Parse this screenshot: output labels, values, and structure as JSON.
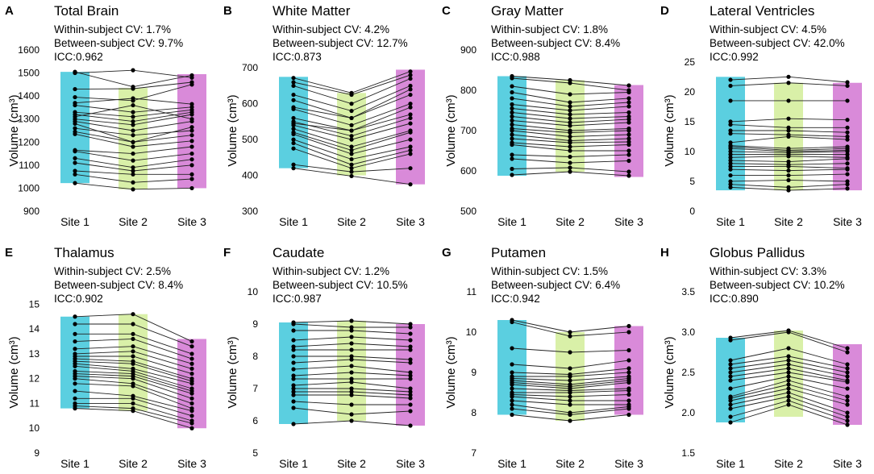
{
  "figure": {
    "site_colors": [
      "#5bcfe0",
      "#d9f0a8",
      "#d98ad9"
    ],
    "point_color": "#000000",
    "line_color": "#222222"
  },
  "chart_data": [
    {
      "letter": "A",
      "title": "Total Brain",
      "type": "line",
      "within_cv": "Within-subject CV: 1.7%",
      "between_cv": "Between-subject CV: 9.7%",
      "icc": "ICC:0.962",
      "ylabel": "Volume (cm³)",
      "ylim": [
        900,
        1600
      ],
      "yticks": [
        900,
        1000,
        1100,
        1200,
        1300,
        1400,
        1500,
        1600
      ],
      "categories": [
        "Site 1",
        "Site 2",
        "Site 3"
      ],
      "bands": [
        [
          1022,
          1505
        ],
        [
          995,
          1435
        ],
        [
          1000,
          1495
        ]
      ],
      "subjects": [
        [
          1505,
          1440,
          1490
        ],
        [
          1500,
          1512,
          1480
        ],
        [
          1430,
          1432,
          1460
        ],
        [
          1395,
          1380,
          1450
        ],
        [
          1370,
          1390,
          1365
        ],
        [
          1360,
          1330,
          1352
        ],
        [
          1330,
          1310,
          1340
        ],
        [
          1320,
          1290,
          1330
        ],
        [
          1310,
          1360,
          1300
        ],
        [
          1300,
          1275,
          1320
        ],
        [
          1290,
          1250,
          1290
        ],
        [
          1280,
          1200,
          1265
        ],
        [
          1260,
          1230,
          1250
        ],
        [
          1245,
          1200,
          1230
        ],
        [
          1235,
          1180,
          1205
        ],
        [
          1165,
          1150,
          1180
        ],
        [
          1160,
          1120,
          1150
        ],
        [
          1130,
          1090,
          1125
        ],
        [
          1110,
          1075,
          1100
        ],
        [
          1075,
          1060,
          1060
        ],
        [
          1060,
          1025,
          1040
        ],
        [
          1022,
          995,
          1000
        ]
      ]
    },
    {
      "letter": "B",
      "title": "White Matter",
      "type": "line",
      "within_cv": "Within-subject CV: 4.2%",
      "between_cv": "Between-subject CV: 12.7%",
      "icc": "ICC:0.873",
      "ylabel": "Volume (cm³)",
      "ylim": [
        300,
        750
      ],
      "yticks": [
        300,
        400,
        500,
        600,
        700
      ],
      "categories": [
        "Site 1",
        "Site 2",
        "Site 3"
      ],
      "bands": [
        [
          420,
          675
        ],
        [
          400,
          630
        ],
        [
          375,
          695
        ]
      ],
      "subjects": [
        [
          672,
          630,
          690
        ],
        [
          660,
          625,
          680
        ],
        [
          650,
          600,
          670
        ],
        [
          625,
          580,
          650
        ],
        [
          610,
          560,
          640
        ],
        [
          590,
          560,
          625
        ],
        [
          585,
          540,
          600
        ],
        [
          560,
          525,
          590
        ],
        [
          550,
          510,
          560
        ],
        [
          545,
          525,
          570
        ],
        [
          540,
          500,
          545
        ],
        [
          530,
          480,
          525
        ],
        [
          520,
          470,
          520
        ],
        [
          515,
          460,
          500
        ],
        [
          500,
          445,
          480
        ],
        [
          490,
          430,
          470
        ],
        [
          475,
          420,
          460
        ],
        [
          430,
          410,
          420
        ],
        [
          420,
          398,
          375
        ]
      ]
    },
    {
      "letter": "C",
      "title": "Gray Matter",
      "type": "line",
      "within_cv": "Within-subject CV: 1.8%",
      "between_cv": "Between-subject CV: 8.4%",
      "icc": "ICC:0.988",
      "ylabel": "Volume (cm³)",
      "ylim": [
        500,
        900
      ],
      "yticks": [
        500,
        600,
        700,
        800,
        900
      ],
      "categories": [
        "Site 1",
        "Site 2",
        "Site 3"
      ],
      "bands": [
        [
          588,
          835
        ],
        [
          598,
          825
        ],
        [
          585,
          813
        ]
      ],
      "subjects": [
        [
          835,
          825,
          812
        ],
        [
          830,
          818,
          800
        ],
        [
          810,
          790,
          795
        ],
        [
          795,
          770,
          780
        ],
        [
          780,
          760,
          770
        ],
        [
          765,
          750,
          760
        ],
        [
          755,
          740,
          745
        ],
        [
          745,
          730,
          735
        ],
        [
          735,
          720,
          728
        ],
        [
          725,
          712,
          720
        ],
        [
          715,
          700,
          705
        ],
        [
          705,
          695,
          700
        ],
        [
          700,
          685,
          690
        ],
        [
          690,
          675,
          680
        ],
        [
          680,
          670,
          672
        ],
        [
          670,
          660,
          665
        ],
        [
          665,
          650,
          650
        ],
        [
          640,
          635,
          640
        ],
        [
          630,
          620,
          625
        ],
        [
          605,
          608,
          598
        ],
        [
          590,
          598,
          588
        ]
      ]
    },
    {
      "letter": "D",
      "title": "Lateral Ventricles",
      "type": "line",
      "within_cv": "Within-subject CV: 4.5%",
      "between_cv": "Between-subject CV: 42.0%",
      "icc": "ICC:0.992",
      "ylabel": "Volume (cm³)",
      "ylim": [
        0,
        27
      ],
      "yticks": [
        0,
        5,
        10,
        15,
        20,
        25
      ],
      "categories": [
        "Site 1",
        "Site 2",
        "Site 3"
      ],
      "bands": [
        [
          3.5,
          22.5
        ],
        [
          3.5,
          21.5
        ],
        [
          3.5,
          21.5
        ]
      ],
      "subjects": [
        [
          22,
          22.5,
          21.6
        ],
        [
          21,
          21.5,
          21
        ],
        [
          18.5,
          18.5,
          18.5
        ],
        [
          15,
          15.5,
          15.3
        ],
        [
          14.5,
          14,
          14
        ],
        [
          13.5,
          13.5,
          13.2
        ],
        [
          13,
          12.8,
          12.5
        ],
        [
          11.5,
          12.5,
          12
        ],
        [
          11,
          10.5,
          10.8
        ],
        [
          10.8,
          10.2,
          10.5
        ],
        [
          10.5,
          10,
          10.2
        ],
        [
          10,
          9.8,
          10
        ],
        [
          9.5,
          9.5,
          9.5
        ],
        [
          9,
          9.2,
          9
        ],
        [
          8.5,
          8.3,
          8.8
        ],
        [
          8,
          7.8,
          8
        ],
        [
          7.5,
          7.5,
          7.2
        ],
        [
          7,
          6.8,
          7
        ],
        [
          6,
          6,
          6.2
        ],
        [
          5,
          5.2,
          5
        ],
        [
          4.5,
          4,
          4.5
        ],
        [
          4,
          3.5,
          3.8
        ]
      ]
    },
    {
      "letter": "E",
      "title": "Thalamus",
      "type": "line",
      "within_cv": "Within-subject CV: 2.5%",
      "between_cv": "Between-subject CV: 8.4%",
      "icc": "ICC:0.902",
      "ylabel": "Volume (cm³)",
      "ylim": [
        9,
        15.5
      ],
      "yticks": [
        9,
        10,
        11,
        12,
        13,
        14,
        15
      ],
      "categories": [
        "Site 1",
        "Site 2",
        "Site 3"
      ],
      "bands": [
        [
          10.8,
          14.5
        ],
        [
          10.7,
          14.6
        ],
        [
          10,
          13.6
        ]
      ],
      "subjects": [
        [
          14.5,
          14.6,
          13.5
        ],
        [
          14.2,
          14.2,
          13.3
        ],
        [
          13.8,
          13.8,
          13
        ],
        [
          13.5,
          13.6,
          12.8
        ],
        [
          13.2,
          13.3,
          12.6
        ],
        [
          13,
          13.1,
          12.4
        ],
        [
          12.9,
          12.9,
          12.2
        ],
        [
          12.8,
          12.7,
          12
        ],
        [
          12.7,
          12.6,
          11.9
        ],
        [
          12.6,
          12.4,
          11.8
        ],
        [
          12.5,
          12.3,
          11.6
        ],
        [
          12.3,
          12.2,
          11.5
        ],
        [
          12.2,
          12.1,
          11.4
        ],
        [
          12.1,
          12,
          11.2
        ],
        [
          12,
          11.8,
          11
        ],
        [
          11.8,
          11.7,
          10.8
        ],
        [
          11.5,
          11.3,
          10.7
        ],
        [
          11.2,
          11.2,
          10.5
        ],
        [
          11,
          11,
          10.3
        ],
        [
          10.9,
          10.8,
          10.2
        ],
        [
          10.8,
          10.7,
          10
        ]
      ]
    },
    {
      "letter": "F",
      "title": "Caudate",
      "type": "line",
      "within_cv": "Within-subject CV: 1.2%",
      "between_cv": "Between-subject CV: 10.5%",
      "icc": "ICC:0.987",
      "ylabel": "Volume (cm³)",
      "ylim": [
        5,
        10
      ],
      "yticks": [
        5,
        6,
        7,
        8,
        9,
        10
      ],
      "categories": [
        "Site 1",
        "Site 2",
        "Site 3"
      ],
      "bands": [
        [
          5.9,
          9.05
        ],
        [
          6.0,
          9.1
        ],
        [
          5.85,
          9.0
        ]
      ],
      "subjects": [
        [
          9.05,
          9.1,
          9.0
        ],
        [
          9.0,
          8.9,
          8.9
        ],
        [
          8.8,
          8.8,
          8.7
        ],
        [
          8.5,
          8.6,
          8.5
        ],
        [
          8.3,
          8.4,
          8.3
        ],
        [
          8.2,
          8.2,
          8.2
        ],
        [
          8.0,
          8.0,
          7.9
        ],
        [
          7.8,
          7.9,
          7.8
        ],
        [
          7.6,
          7.7,
          7.5
        ],
        [
          7.4,
          7.5,
          7.4
        ],
        [
          7.3,
          7.3,
          7.3
        ],
        [
          7.1,
          7.2,
          7.0
        ],
        [
          7.0,
          7.0,
          6.9
        ],
        [
          6.9,
          6.9,
          6.8
        ],
        [
          6.8,
          6.8,
          6.7
        ],
        [
          6.6,
          6.5,
          6.5
        ],
        [
          6.4,
          6.2,
          6.3
        ],
        [
          5.9,
          6.0,
          5.85
        ]
      ]
    },
    {
      "letter": "G",
      "title": "Putamen",
      "type": "line",
      "within_cv": "Within-subject CV: 1.5%",
      "between_cv": "Between-subject CV: 6.4%",
      "icc": "ICC:0.942",
      "ylabel": "Volume (cm³)",
      "ylim": [
        7,
        11
      ],
      "yticks": [
        7,
        8,
        9,
        10,
        11
      ],
      "categories": [
        "Site 1",
        "Site 2",
        "Site 3"
      ],
      "bands": [
        [
          7.95,
          10.3
        ],
        [
          7.8,
          10.0
        ],
        [
          7.95,
          10.15
        ]
      ],
      "subjects": [
        [
          10.3,
          10.0,
          10.15
        ],
        [
          10.25,
          9.9,
          10.0
        ],
        [
          9.6,
          9.5,
          9.55
        ],
        [
          9.2,
          9.1,
          9.3
        ],
        [
          9.0,
          8.95,
          9.1
        ],
        [
          8.9,
          8.9,
          9.0
        ],
        [
          8.85,
          8.8,
          8.9
        ],
        [
          8.8,
          8.7,
          8.85
        ],
        [
          8.75,
          8.65,
          8.8
        ],
        [
          8.7,
          8.6,
          8.75
        ],
        [
          8.6,
          8.55,
          8.6
        ],
        [
          8.5,
          8.5,
          8.55
        ],
        [
          8.45,
          8.4,
          8.45
        ],
        [
          8.4,
          8.3,
          8.3
        ],
        [
          8.3,
          8.2,
          8.2
        ],
        [
          8.2,
          8.0,
          8.15
        ],
        [
          8.1,
          7.95,
          8.1
        ],
        [
          7.95,
          7.8,
          7.95
        ]
      ]
    },
    {
      "letter": "H",
      "title": "Globus Pallidus",
      "type": "line",
      "within_cv": "Within-subject CV: 3.3%",
      "between_cv": "Between-subject CV: 10.2%",
      "icc": "ICC:0.890",
      "ylabel": "Volume (cm³)",
      "ylim": [
        1.5,
        3.5
      ],
      "yticks": [
        1.5,
        2.0,
        2.5,
        3.0,
        3.5
      ],
      "categories": [
        "Site 1",
        "Site 2",
        "Site 3"
      ],
      "bands": [
        [
          1.88,
          2.93
        ],
        [
          1.95,
          3.02
        ],
        [
          1.85,
          2.85
        ]
      ],
      "subjects": [
        [
          2.93,
          3.02,
          2.8
        ],
        [
          2.9,
          3.0,
          2.75
        ],
        [
          2.65,
          2.8,
          2.6
        ],
        [
          2.6,
          2.7,
          2.55
        ],
        [
          2.55,
          2.65,
          2.5
        ],
        [
          2.5,
          2.6,
          2.45
        ],
        [
          2.45,
          2.55,
          2.4
        ],
        [
          2.4,
          2.5,
          2.38
        ],
        [
          2.3,
          2.45,
          2.3
        ],
        [
          2.2,
          2.4,
          2.2
        ],
        [
          2.18,
          2.35,
          2.15
        ],
        [
          2.15,
          2.3,
          2.1
        ],
        [
          2.1,
          2.25,
          2.0
        ],
        [
          2.05,
          2.2,
          1.95
        ],
        [
          1.95,
          2.15,
          1.9
        ],
        [
          1.88,
          2.1,
          1.85
        ]
      ]
    }
  ]
}
